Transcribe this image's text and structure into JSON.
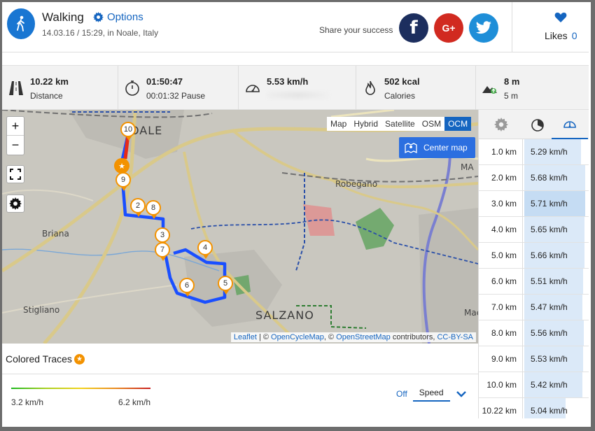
{
  "header": {
    "activity": "Walking",
    "options_label": "Options",
    "subtitle": "14.03.16 / 15:29, in Noale, Italy",
    "share_text": "Share your success",
    "likes_label": "Likes",
    "likes_count": "0"
  },
  "stats": [
    {
      "icon": "road-icon",
      "value": "10.22 km",
      "label": "Distance"
    },
    {
      "icon": "stopwatch-icon",
      "value": "01:50:47",
      "label": "00:01:32 Pause"
    },
    {
      "icon": "speedometer-icon",
      "value": "5.53 km/h",
      "label": ""
    },
    {
      "icon": "flame-icon",
      "value": "502 kcal",
      "label": "Calories"
    },
    {
      "icon": "elevation-icon",
      "value": "8 m",
      "label": "5 m"
    }
  ],
  "map": {
    "types": [
      "Map",
      "Hybrid",
      "Satellite",
      "OSM",
      "OCM"
    ],
    "active_type": "OCM",
    "center_label": "Center map",
    "places": [
      "NOALE",
      "Robegano",
      "Briana",
      "Stigliano",
      "SALZANO",
      "Mae",
      "MA"
    ],
    "markers": [
      "10",
      "9",
      "2",
      "8",
      "3",
      "7",
      "4",
      "6",
      "5"
    ],
    "attribution": {
      "leaflet": "Leaflet",
      "sep1": " | © ",
      "ocm": "OpenCycleMap",
      "sep2": ", © ",
      "osm": "OpenStreetMap",
      "contrib": " contributors, ",
      "license": "CC-BY-SA"
    }
  },
  "traces": {
    "title": "Colored Traces",
    "min": "3.2 km/h",
    "max": "6.2 km/h",
    "off_label": "Off",
    "speed_label": "Speed",
    "colors": [
      "#1cb81c",
      "#f2d21a",
      "#c81e1e"
    ]
  },
  "splits": [
    {
      "km": "1.0 km",
      "speed": "5.29 km/h",
      "ratio": 0.93
    },
    {
      "km": "2.0 km",
      "speed": "5.68 km/h",
      "ratio": 0.996
    },
    {
      "km": "3.0 km",
      "speed": "5.71 km/h",
      "ratio": 1.0
    },
    {
      "km": "4.0 km",
      "speed": "5.65 km/h",
      "ratio": 0.99
    },
    {
      "km": "5.0 km",
      "speed": "5.66 km/h",
      "ratio": 0.993
    },
    {
      "km": "6.0 km",
      "speed": "5.51 km/h",
      "ratio": 0.965
    },
    {
      "km": "7.0 km",
      "speed": "5.47 km/h",
      "ratio": 0.958
    },
    {
      "km": "8.0 km",
      "speed": "5.56 km/h",
      "ratio": 0.974
    },
    {
      "km": "9.0 km",
      "speed": "5.53 km/h",
      "ratio": 0.968
    },
    {
      "km": "10.0 km",
      "speed": "5.42 km/h",
      "ratio": 0.95
    },
    {
      "km": "10.22 km",
      "speed": "5.04 km/h",
      "ratio": 0.68
    }
  ]
}
